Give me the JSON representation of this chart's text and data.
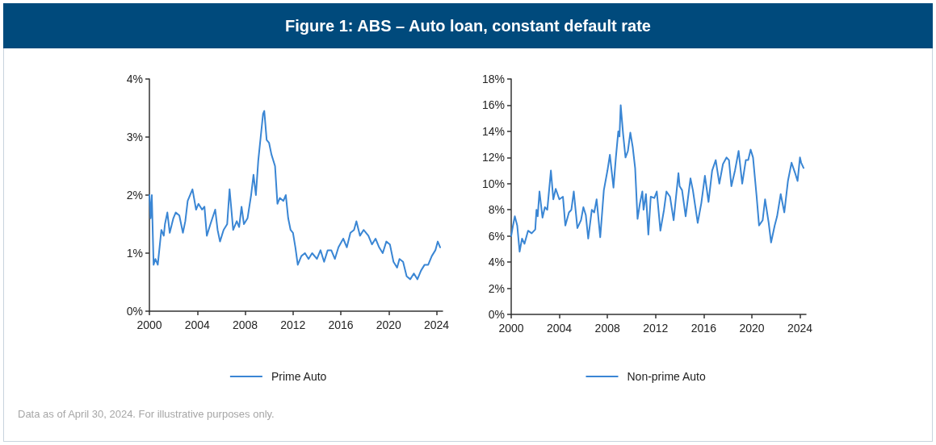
{
  "chart_data": [
    {
      "type": "line",
      "title": "Figure 1: ABS – Auto loan, constant default rate",
      "annotations": [
        "Data as of April 30, 2024. For illustrative purposes only."
      ],
      "xlim": [
        2000,
        2024.5
      ],
      "xticks": [
        2000,
        2004,
        2008,
        2012,
        2016,
        2020,
        2024
      ],
      "ylim": [
        0,
        4
      ],
      "yticks": [
        {
          "value": 0,
          "label": "0%"
        },
        {
          "value": 1,
          "label": "1%"
        },
        {
          "value": 2,
          "label": "2%"
        },
        {
          "value": 3,
          "label": "3%"
        },
        {
          "value": 4,
          "label": "4%"
        }
      ],
      "grid": false,
      "legend": "bottom",
      "marker": "none",
      "line_style": "solid",
      "series": [
        {
          "name": "Prime Auto",
          "color": "#3a86d4",
          "x": [
            2000.0,
            2000.1,
            2000.2,
            2000.35,
            2000.5,
            2000.7,
            2001.0,
            2001.2,
            2001.3,
            2001.5,
            2001.7,
            2002.0,
            2002.2,
            2002.5,
            2002.8,
            2003.0,
            2003.2,
            2003.5,
            2003.6,
            2003.9,
            2004.1,
            2004.4,
            2004.6,
            2004.8,
            2005.1,
            2005.5,
            2005.7,
            2005.9,
            2006.2,
            2006.5,
            2006.7,
            2007.0,
            2007.3,
            2007.5,
            2007.7,
            2007.9,
            2008.2,
            2008.5,
            2008.7,
            2008.9,
            2009.1,
            2009.3,
            2009.5,
            2009.6,
            2009.8,
            2010.0,
            2010.2,
            2010.5,
            2010.7,
            2010.9,
            2011.2,
            2011.4,
            2011.6,
            2011.8,
            2012.0,
            2012.2,
            2012.4,
            2012.7,
            2013.0,
            2013.3,
            2013.6,
            2014.0,
            2014.3,
            2014.6,
            2014.9,
            2015.2,
            2015.5,
            2015.8,
            2016.2,
            2016.5,
            2016.8,
            2017.1,
            2017.3,
            2017.6,
            2017.9,
            2018.3,
            2018.6,
            2018.9,
            2019.2,
            2019.5,
            2019.8,
            2020.1,
            2020.4,
            2020.7,
            2020.9,
            2021.2,
            2021.5,
            2021.8,
            2022.1,
            2022.4,
            2022.7,
            2023.0,
            2023.3,
            2023.6,
            2023.9,
            2024.1,
            2024.3
          ],
          "values": [
            2.0,
            1.6,
            2.0,
            0.8,
            0.9,
            0.8,
            1.4,
            1.3,
            1.5,
            1.7,
            1.35,
            1.6,
            1.7,
            1.65,
            1.35,
            1.55,
            1.9,
            2.05,
            2.1,
            1.75,
            1.85,
            1.75,
            1.8,
            1.3,
            1.5,
            1.75,
            1.4,
            1.2,
            1.4,
            1.5,
            2.1,
            1.4,
            1.55,
            1.45,
            1.8,
            1.5,
            1.6,
            2.0,
            2.35,
            2.0,
            2.6,
            3.0,
            3.4,
            3.45,
            2.95,
            2.9,
            2.7,
            2.5,
            1.85,
            1.95,
            1.9,
            2.0,
            1.6,
            1.4,
            1.35,
            1.1,
            0.8,
            0.95,
            1.0,
            0.9,
            1.0,
            0.9,
            1.05,
            0.85,
            1.05,
            1.05,
            0.9,
            1.1,
            1.25,
            1.1,
            1.35,
            1.4,
            1.55,
            1.3,
            1.4,
            1.3,
            1.15,
            1.25,
            1.1,
            1.0,
            1.2,
            1.15,
            0.85,
            0.75,
            0.9,
            0.85,
            0.6,
            0.55,
            0.65,
            0.55,
            0.7,
            0.8,
            0.8,
            0.95,
            1.05,
            1.2,
            1.1
          ]
        }
      ]
    },
    {
      "type": "line",
      "xlim": [
        2000,
        2024.5
      ],
      "xticks": [
        2000,
        2004,
        2008,
        2012,
        2016,
        2020,
        2024
      ],
      "ylim": [
        0,
        18
      ],
      "yticks": [
        {
          "value": 0,
          "label": "0%"
        },
        {
          "value": 2,
          "label": "2%"
        },
        {
          "value": 4,
          "label": "4%"
        },
        {
          "value": 6,
          "label": "6%"
        },
        {
          "value": 8,
          "label": "8%"
        },
        {
          "value": 10,
          "label": "10%"
        },
        {
          "value": 12,
          "label": "12%"
        },
        {
          "value": 14,
          "label": "14%"
        },
        {
          "value": 16,
          "label": "16%"
        },
        {
          "value": 18,
          "label": "18%"
        }
      ],
      "grid": false,
      "legend": "bottom",
      "marker": "none",
      "line_style": "solid",
      "series": [
        {
          "name": "Non-prime Auto",
          "color": "#3a86d4",
          "x": [
            2000.0,
            2000.15,
            2000.3,
            2000.5,
            2000.7,
            2000.9,
            2001.1,
            2001.4,
            2001.7,
            2002.0,
            2002.1,
            2002.2,
            2002.35,
            2002.6,
            2002.8,
            2003.0,
            2003.3,
            2003.5,
            2003.7,
            2004.0,
            2004.3,
            2004.5,
            2004.8,
            2005.0,
            2005.2,
            2005.5,
            2005.8,
            2006.0,
            2006.2,
            2006.4,
            2006.7,
            2006.9,
            2007.1,
            2007.4,
            2007.7,
            2008.0,
            2008.2,
            2008.5,
            2008.7,
            2008.9,
            2009.0,
            2009.1,
            2009.3,
            2009.5,
            2009.7,
            2009.9,
            2010.1,
            2010.3,
            2010.5,
            2010.7,
            2010.9,
            2011.0,
            2011.2,
            2011.4,
            2011.6,
            2011.9,
            2012.1,
            2012.4,
            2012.7,
            2012.9,
            2013.2,
            2013.5,
            2013.9,
            2014.0,
            2014.2,
            2014.5,
            2014.9,
            2015.1,
            2015.5,
            2015.8,
            2016.1,
            2016.4,
            2016.7,
            2017.0,
            2017.3,
            2017.6,
            2017.9,
            2018.1,
            2018.3,
            2018.6,
            2018.9,
            2019.2,
            2019.5,
            2019.7,
            2019.9,
            2020.1,
            2020.4,
            2020.6,
            2020.9,
            2021.1,
            2021.4,
            2021.6,
            2021.9,
            2022.1,
            2022.4,
            2022.7,
            2023.0,
            2023.3,
            2023.6,
            2023.8,
            2024.0,
            2024.1,
            2024.3
          ],
          "values": [
            6.0,
            6.8,
            7.5,
            6.8,
            4.8,
            5.8,
            5.4,
            6.4,
            6.2,
            6.5,
            8.0,
            7.5,
            9.4,
            7.4,
            8.2,
            8.0,
            11.0,
            8.8,
            9.6,
            8.8,
            9.0,
            6.8,
            7.8,
            8.0,
            9.4,
            6.6,
            7.2,
            8.2,
            7.6,
            5.8,
            8.0,
            7.8,
            8.8,
            5.9,
            9.5,
            11.0,
            12.2,
            9.7,
            12.0,
            14.0,
            13.6,
            16.0,
            13.8,
            12.0,
            12.5,
            13.9,
            12.8,
            11.2,
            7.3,
            8.5,
            9.4,
            8.0,
            9.2,
            6.1,
            9.0,
            8.9,
            9.4,
            6.4,
            8.0,
            9.4,
            9.0,
            7.2,
            10.8,
            9.8,
            9.5,
            7.5,
            10.4,
            9.5,
            7.0,
            8.5,
            10.6,
            8.6,
            11.0,
            11.8,
            10.0,
            11.5,
            12.0,
            11.8,
            9.8,
            11.0,
            12.5,
            10.0,
            11.8,
            11.8,
            12.6,
            12.0,
            9.0,
            6.8,
            7.2,
            8.8,
            7.0,
            5.5,
            6.8,
            7.5,
            9.2,
            7.8,
            10.2,
            11.6,
            10.8,
            10.2,
            12.0,
            11.6,
            11.2
          ]
        }
      ]
    }
  ]
}
